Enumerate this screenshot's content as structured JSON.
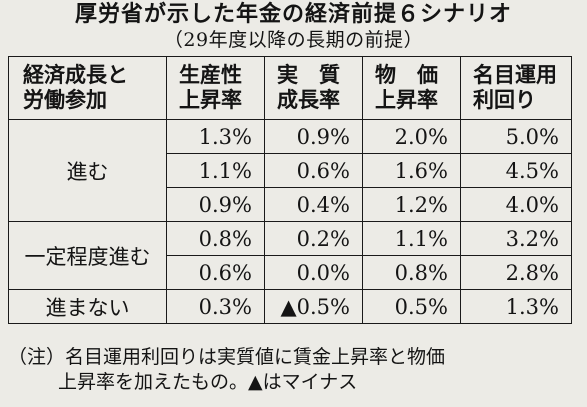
{
  "title": "厚労省が示した年金の経済前提６シナリオ",
  "subtitle": "（29年度以降の長期の前提）",
  "table": {
    "headers": [
      [
        "経済成長と",
        "労働参加"
      ],
      [
        "生産性",
        "上昇率"
      ],
      [
        "実　質",
        "成長率"
      ],
      [
        "物　価",
        "上昇率"
      ],
      [
        "名目運用",
        "利回り"
      ]
    ],
    "groups": [
      {
        "label": "進む",
        "rows": [
          [
            "1.3%",
            "0.9%",
            "2.0%",
            "5.0%"
          ],
          [
            "1.1%",
            "0.6%",
            "1.6%",
            "4.5%"
          ],
          [
            "0.9%",
            "0.4%",
            "1.2%",
            "4.0%"
          ]
        ]
      },
      {
        "label": "一定程度進む",
        "rows": [
          [
            "0.8%",
            "0.2%",
            "1.1%",
            "3.2%"
          ],
          [
            "0.6%",
            "0.0%",
            "0.8%",
            "2.8%"
          ]
        ]
      },
      {
        "label": "進まない",
        "rows": [
          [
            "0.3%",
            "▲0.5%",
            "0.5%",
            "1.3%"
          ]
        ]
      }
    ]
  },
  "note": {
    "line1": "（注）名目運用利回りは実質値に賃金上昇率と物価",
    "line2": "上昇率を加えたもの。▲はマイナス"
  }
}
